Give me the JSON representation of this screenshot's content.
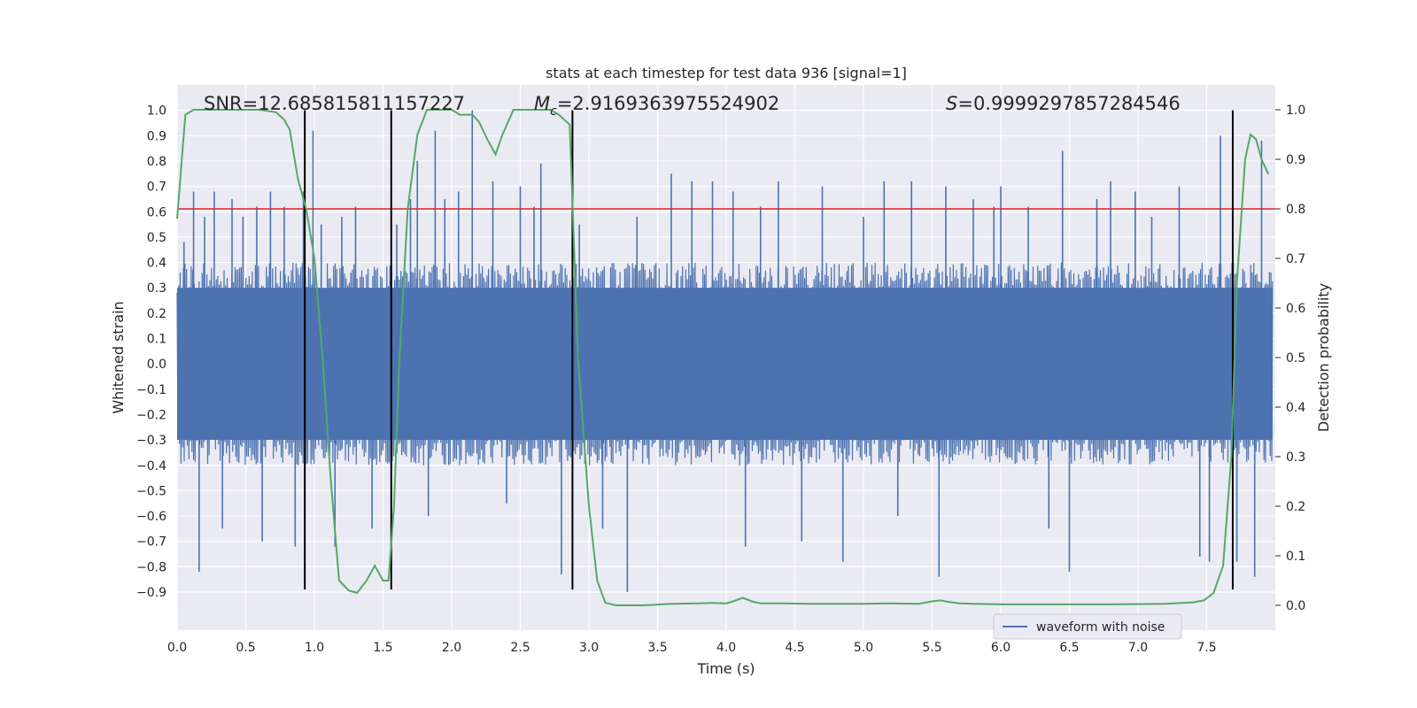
{
  "chart_data": {
    "type": "line",
    "title": "stats at each timestep for test data 936 [signal=1]",
    "xlabel": "Time (s)",
    "ylabel_left": "Whitened strain",
    "ylabel_right": "Detection probability",
    "xlim": [
      0.0,
      8.0
    ],
    "ylim_left": [
      -1.05,
      1.1
    ],
    "ylim_right": [
      -0.05,
      1.05
    ],
    "x_ticks": [
      0.0,
      0.5,
      1.0,
      1.5,
      2.0,
      2.5,
      3.0,
      3.5,
      4.0,
      4.5,
      5.0,
      5.5,
      6.0,
      6.5,
      7.0,
      7.5
    ],
    "y_ticks_left": [
      1.0,
      0.9,
      0.8,
      0.7,
      0.6,
      0.5,
      0.4,
      0.3,
      0.2,
      0.1,
      0.0,
      -0.1,
      -0.2,
      -0.3,
      -0.4,
      -0.5,
      -0.6,
      -0.7,
      -0.8,
      -0.9
    ],
    "y_ticks_right": [
      1.0,
      0.9,
      0.8,
      0.7,
      0.6,
      0.5,
      0.4,
      0.3,
      0.2,
      0.1,
      0.0
    ],
    "grid": true,
    "legend": {
      "placement": "lower-right",
      "entries": [
        "waveform with noise"
      ]
    },
    "annotations": {
      "snr": "SNR=12.685815811157227",
      "mc_symbol": "M",
      "mc_sub": "c",
      "mc_value": "=2.9169363975524902",
      "s_symbol": "S",
      "s_value": "=0.9999297857284546"
    },
    "threshold": {
      "y_right": 0.8,
      "color": "#d62728"
    },
    "vertical_markers_x": [
      0.93,
      1.56,
      2.88,
      7.69
    ],
    "vertical_marker_range_left": [
      -0.89,
      1.0
    ],
    "waveform": {
      "name": "waveform with noise",
      "color": "#4c72b0",
      "band_abs": 0.4,
      "spikes": [
        [
          0.05,
          0.48
        ],
        [
          0.12,
          0.68
        ],
        [
          0.16,
          -0.82
        ],
        [
          0.2,
          0.58
        ],
        [
          0.27,
          0.68
        ],
        [
          0.33,
          -0.65
        ],
        [
          0.4,
          0.65
        ],
        [
          0.48,
          0.58
        ],
        [
          0.58,
          0.62
        ],
        [
          0.62,
          -0.7
        ],
        [
          0.68,
          0.68
        ],
        [
          0.78,
          0.62
        ],
        [
          0.86,
          -0.72
        ],
        [
          0.92,
          0.68
        ],
        [
          0.99,
          0.92
        ],
        [
          1.05,
          0.55
        ],
        [
          1.15,
          -0.72
        ],
        [
          1.2,
          0.58
        ],
        [
          1.3,
          0.62
        ],
        [
          1.42,
          -0.65
        ],
        [
          1.6,
          0.55
        ],
        [
          1.7,
          0.65
        ],
        [
          1.75,
          0.8
        ],
        [
          1.83,
          -0.6
        ],
        [
          1.88,
          0.92
        ],
        [
          1.95,
          0.65
        ],
        [
          2.05,
          0.68
        ],
        [
          2.15,
          1.0
        ],
        [
          2.3,
          0.72
        ],
        [
          2.4,
          -0.55
        ],
        [
          2.5,
          0.7
        ],
        [
          2.6,
          0.62
        ],
        [
          2.65,
          0.79
        ],
        [
          2.8,
          -0.83
        ],
        [
          2.93,
          0.55
        ],
        [
          3.1,
          -0.65
        ],
        [
          3.28,
          -0.9
        ],
        [
          3.35,
          0.58
        ],
        [
          3.6,
          0.75
        ],
        [
          3.75,
          0.72
        ],
        [
          3.9,
          0.72
        ],
        [
          4.05,
          0.68
        ],
        [
          4.14,
          -0.72
        ],
        [
          4.25,
          0.62
        ],
        [
          4.38,
          0.72
        ],
        [
          4.55,
          -0.7
        ],
        [
          4.7,
          0.7
        ],
        [
          4.85,
          -0.78
        ],
        [
          5.0,
          0.58
        ],
        [
          5.15,
          0.72
        ],
        [
          5.25,
          -0.6
        ],
        [
          5.35,
          0.72
        ],
        [
          5.55,
          -0.84
        ],
        [
          5.6,
          0.7
        ],
        [
          5.8,
          0.65
        ],
        [
          5.95,
          0.62
        ],
        [
          6.0,
          0.7
        ],
        [
          6.2,
          0.62
        ],
        [
          6.35,
          -0.65
        ],
        [
          6.45,
          0.84
        ],
        [
          6.5,
          -0.82
        ],
        [
          6.7,
          0.65
        ],
        [
          6.8,
          0.72
        ],
        [
          6.98,
          0.68
        ],
        [
          7.1,
          0.58
        ],
        [
          7.3,
          0.7
        ],
        [
          7.45,
          -0.76
        ],
        [
          7.52,
          -0.78
        ],
        [
          7.6,
          0.9
        ],
        [
          7.72,
          -0.78
        ],
        [
          7.85,
          -0.84
        ],
        [
          7.9,
          0.88
        ]
      ]
    },
    "detection_probability": {
      "color": "#55a868",
      "x": [
        0.0,
        0.06,
        0.12,
        0.2,
        0.4,
        0.6,
        0.72,
        0.78,
        0.82,
        0.88,
        0.94,
        1.0,
        1.06,
        1.12,
        1.18,
        1.25,
        1.31,
        1.38,
        1.44,
        1.5,
        1.54,
        1.58,
        1.62,
        1.68,
        1.75,
        1.82,
        1.9,
        2.0,
        2.06,
        2.15,
        2.2,
        2.26,
        2.32,
        2.37,
        2.45,
        2.6,
        2.72,
        2.78,
        2.86,
        2.92,
        3.0,
        3.06,
        3.12,
        3.2,
        3.4,
        3.6,
        3.8,
        3.9,
        4.0,
        4.05,
        4.12,
        4.2,
        4.25,
        4.4,
        4.6,
        4.8,
        5.0,
        5.2,
        5.4,
        5.5,
        5.56,
        5.62,
        5.7,
        5.8,
        6.0,
        6.4,
        6.8,
        7.2,
        7.4,
        7.48,
        7.55,
        7.62,
        7.68,
        7.72,
        7.78,
        7.82,
        7.86,
        7.9,
        7.95
      ],
      "y": [
        0.78,
        0.99,
        1.0,
        1.0,
        1.0,
        1.0,
        0.995,
        0.98,
        0.96,
        0.86,
        0.8,
        0.7,
        0.5,
        0.25,
        0.05,
        0.03,
        0.025,
        0.05,
        0.08,
        0.05,
        0.05,
        0.2,
        0.5,
        0.8,
        0.95,
        1.0,
        1.0,
        1.0,
        0.99,
        0.99,
        0.975,
        0.94,
        0.91,
        0.95,
        1.0,
        1.0,
        1.0,
        0.99,
        0.97,
        0.5,
        0.2,
        0.05,
        0.005,
        0.0,
        0.0,
        0.003,
        0.004,
        0.005,
        0.004,
        0.008,
        0.015,
        0.007,
        0.004,
        0.004,
        0.003,
        0.003,
        0.003,
        0.004,
        0.003,
        0.008,
        0.01,
        0.007,
        0.004,
        0.003,
        0.002,
        0.002,
        0.002,
        0.003,
        0.006,
        0.01,
        0.025,
        0.08,
        0.3,
        0.65,
        0.9,
        0.95,
        0.94,
        0.9,
        0.87
      ]
    }
  }
}
